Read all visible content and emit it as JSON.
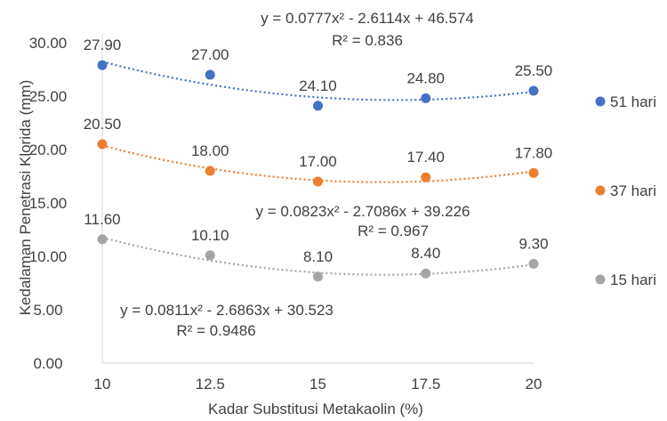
{
  "chart_data": {
    "type": "scatter",
    "title": "",
    "xlabel": "Kadar Substitusi Metakaolin (%)",
    "ylabel": "Kedalaman Penetrasi Klorida (mm)",
    "x": [
      10,
      12.5,
      15,
      17.5,
      20
    ],
    "x_tick_labels": [
      "10",
      "12.5",
      "15",
      "17.5",
      "20"
    ],
    "y_tick_labels": [
      "0.00",
      "5.00",
      "10.00",
      "15.00",
      "20.00",
      "25.00",
      "30.00"
    ],
    "xlim": [
      10,
      20
    ],
    "ylim": [
      0,
      30
    ],
    "grid": false,
    "legend_position": "right",
    "trendline": "polynomial order 2, dotted",
    "series": [
      {
        "name": "51 hari",
        "color": "#4472C4",
        "values": [
          27.9,
          27.0,
          24.1,
          24.8,
          25.5
        ],
        "data_labels": [
          "27.90",
          "27.00",
          "24.10",
          "24.80",
          "25.50"
        ],
        "trend_coeffs": [
          0.0777,
          -2.6114,
          46.574
        ],
        "equation": "y = 0.0777x² - 2.6114x + 46.574",
        "r_squared": "R² = 0.836"
      },
      {
        "name": "37 hari",
        "color": "#ED7D31",
        "values": [
          20.5,
          18.0,
          17.0,
          17.4,
          17.8
        ],
        "data_labels": [
          "20.50",
          "18.00",
          "17.00",
          "17.40",
          "17.80"
        ],
        "trend_coeffs": [
          0.0823,
          -2.7086,
          39.226
        ],
        "equation": "y = 0.0823x² - 2.7086x + 39.226",
        "r_squared": "R² = 0.967"
      },
      {
        "name": "15 hari",
        "color": "#A5A5A5",
        "values": [
          11.6,
          10.1,
          8.1,
          8.4,
          9.3
        ],
        "data_labels": [
          "11.60",
          "10.10",
          "8.10",
          "8.40",
          "9.30"
        ],
        "trend_coeffs": [
          0.0811,
          -2.6863,
          30.523
        ],
        "equation": "y = 0.0811x² - 2.6863x + 30.523",
        "r_squared": "R² = 0.9486"
      }
    ]
  }
}
